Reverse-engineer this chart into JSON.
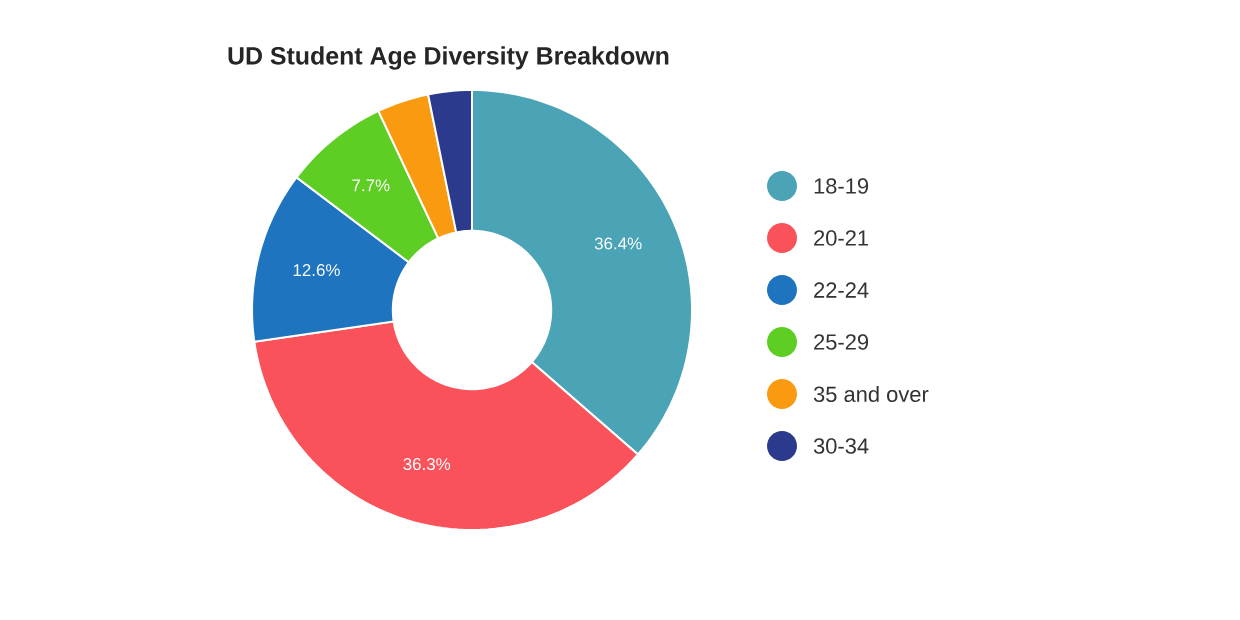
{
  "chart_data": {
    "type": "donut",
    "title": "UD Student Age Diversity Breakdown",
    "categories": [
      "18-19",
      "20-21",
      "22-24",
      "25-29",
      "35 and over",
      "30-34"
    ],
    "values": [
      36.4,
      36.3,
      12.6,
      7.7,
      3.8,
      3.2
    ],
    "colors": [
      "#4ba3b6",
      "#f9525a",
      "#1f74bf",
      "#5ecd24",
      "#f99a10",
      "#2b3a8c"
    ],
    "value_labels": [
      "36.4%",
      "36.3%",
      "12.6%",
      "7.7%",
      null,
      null
    ],
    "legend": "right"
  }
}
